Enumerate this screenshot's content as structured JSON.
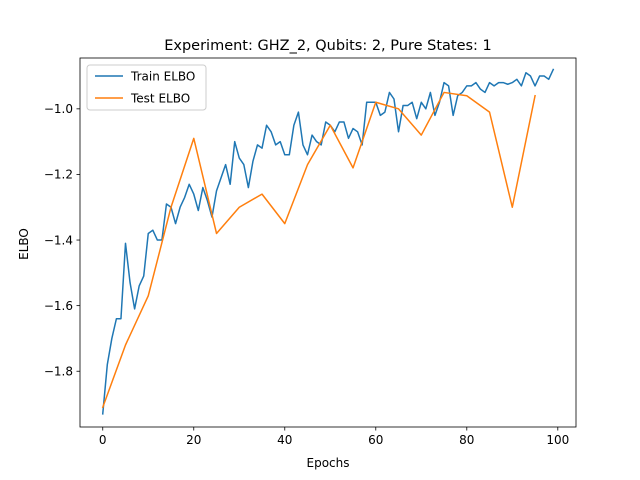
{
  "chart_data": {
    "type": "line",
    "title": "Experiment: GHZ_2, Qubits: 2, Pure States: 1",
    "xlabel": "Epochs",
    "ylabel": "ELBO",
    "xlim": [
      -5,
      104
    ],
    "ylim": [
      -1.97,
      -0.845
    ],
    "xticks": [
      0,
      20,
      40,
      60,
      80,
      100
    ],
    "yticks": [
      -1.8,
      -1.6,
      -1.4,
      -1.2,
      -1.0
    ],
    "grid": false,
    "legend_position": "top-left",
    "series": [
      {
        "name": "Train ELBO",
        "color": "#1f77b4",
        "x": [
          0,
          1,
          2,
          3,
          4,
          5,
          6,
          7,
          8,
          9,
          10,
          11,
          12,
          13,
          14,
          15,
          16,
          17,
          18,
          19,
          20,
          21,
          22,
          23,
          24,
          25,
          26,
          27,
          28,
          29,
          30,
          31,
          32,
          33,
          34,
          35,
          36,
          37,
          38,
          39,
          40,
          41,
          42,
          43,
          44,
          45,
          46,
          47,
          48,
          49,
          50,
          51,
          52,
          53,
          54,
          55,
          56,
          57,
          58,
          59,
          60,
          61,
          62,
          63,
          64,
          65,
          66,
          67,
          68,
          69,
          70,
          71,
          72,
          73,
          74,
          75,
          76,
          77,
          78,
          79,
          80,
          81,
          82,
          83,
          84,
          85,
          86,
          87,
          88,
          89,
          90,
          91,
          92,
          93,
          94,
          95,
          96,
          97,
          98,
          99
        ],
        "y": [
          -1.93,
          -1.78,
          -1.7,
          -1.64,
          -1.64,
          -1.41,
          -1.53,
          -1.61,
          -1.54,
          -1.51,
          -1.38,
          -1.37,
          -1.4,
          -1.4,
          -1.29,
          -1.3,
          -1.35,
          -1.3,
          -1.27,
          -1.23,
          -1.26,
          -1.31,
          -1.24,
          -1.28,
          -1.33,
          -1.25,
          -1.21,
          -1.17,
          -1.23,
          -1.1,
          -1.15,
          -1.17,
          -1.24,
          -1.16,
          -1.11,
          -1.12,
          -1.05,
          -1.07,
          -1.11,
          -1.1,
          -1.14,
          -1.14,
          -1.05,
          -1.01,
          -1.11,
          -1.14,
          -1.08,
          -1.1,
          -1.11,
          -1.04,
          -1.05,
          -1.07,
          -1.04,
          -1.04,
          -1.09,
          -1.06,
          -1.07,
          -1.11,
          -0.98,
          -0.98,
          -0.98,
          -1.02,
          -1.01,
          -0.95,
          -0.97,
          -1.07,
          -0.99,
          -0.99,
          -0.98,
          -1.03,
          -0.98,
          -1.0,
          -0.95,
          -1.02,
          -0.98,
          -0.92,
          -0.93,
          -1.02,
          -0.96,
          -0.95,
          -0.93,
          -0.93,
          -0.92,
          -0.94,
          -0.95,
          -0.92,
          -0.93,
          -0.92,
          -0.92,
          -0.925,
          -0.92,
          -0.91,
          -0.93,
          -0.89,
          -0.9,
          -0.93,
          -0.9,
          -0.9,
          -0.91,
          -0.88
        ]
      },
      {
        "name": "Test ELBO",
        "color": "#ff7f0e",
        "x": [
          0,
          5,
          10,
          15,
          20,
          25,
          30,
          35,
          40,
          45,
          50,
          55,
          60,
          65,
          70,
          75,
          80,
          85,
          90,
          95
        ],
        "y": [
          -1.91,
          -1.72,
          -1.57,
          -1.3,
          -1.09,
          -1.38,
          -1.3,
          -1.26,
          -1.35,
          -1.17,
          -1.05,
          -1.18,
          -0.98,
          -1.0,
          -1.08,
          -0.95,
          -0.96,
          -1.01,
          -1.3,
          -0.96
        ]
      }
    ]
  }
}
